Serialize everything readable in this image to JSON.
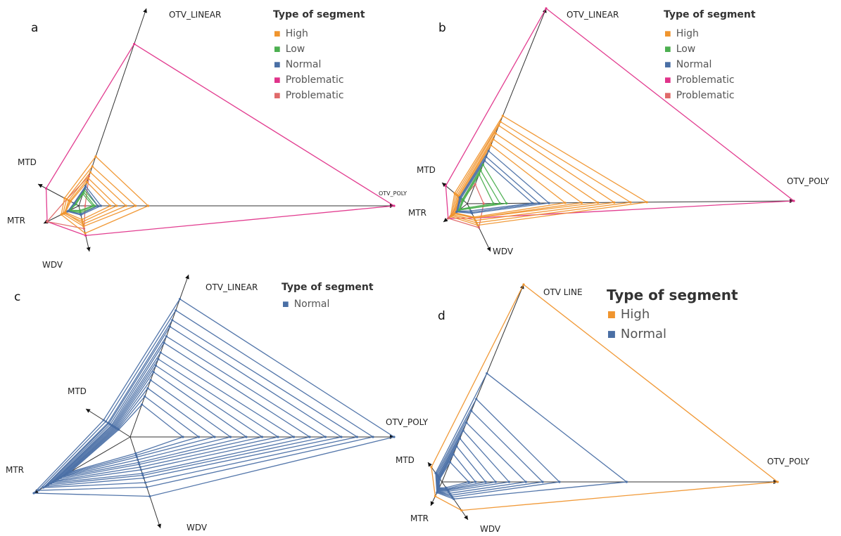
{
  "chart_data": [
    {
      "type": "radar",
      "panel": "a",
      "legend_title": "Type of segment",
      "legend": [
        {
          "name": "High",
          "color": "#F0952E"
        },
        {
          "name": "Low",
          "color": "#4CAF50"
        },
        {
          "name": "Normal",
          "color": "#4A6FA5"
        },
        {
          "name": "Problematic",
          "color": "#E0338A"
        },
        {
          "name": "Problematic",
          "color": "#E06A6A"
        }
      ],
      "axes": [
        {
          "name": "OTV_LINEAR"
        },
        {
          "name": "OTV_POLY"
        },
        {
          "name": "WDV"
        },
        {
          "name": "MTR"
        },
        {
          "name": "MTD"
        }
      ],
      "series": [
        {
          "group": 3,
          "values": [
            0.82,
            1.0,
            0.65,
            0.9,
            0.8
          ]
        },
        {
          "group": 4,
          "values": [
            0.15,
            0.02,
            0.5,
            0.9,
            0.3
          ]
        },
        {
          "group": 0,
          "values": [
            0.25,
            0.22,
            0.6,
            0.5,
            0.35
          ]
        },
        {
          "group": 0,
          "values": [
            0.2,
            0.18,
            0.45,
            0.45,
            0.3
          ]
        },
        {
          "group": 0,
          "values": [
            0.17,
            0.15,
            0.4,
            0.4,
            0.25
          ]
        },
        {
          "group": 0,
          "values": [
            0.14,
            0.12,
            0.35,
            0.42,
            0.22
          ]
        },
        {
          "group": 0,
          "values": [
            0.12,
            0.1,
            0.3,
            0.38,
            0.2
          ]
        },
        {
          "group": 1,
          "values": [
            0.08,
            0.06,
            0.15,
            0.3,
            0.1
          ]
        },
        {
          "group": 1,
          "values": [
            0.07,
            0.05,
            0.12,
            0.28,
            0.08
          ]
        },
        {
          "group": 1,
          "values": [
            0.06,
            0.045,
            0.1,
            0.25,
            0.07
          ]
        },
        {
          "group": 2,
          "values": [
            0.1,
            0.07,
            0.2,
            0.32,
            0.12
          ]
        },
        {
          "group": 2,
          "values": [
            0.09,
            0.06,
            0.18,
            0.3,
            0.11
          ]
        }
      ]
    },
    {
      "type": "radar",
      "panel": "b",
      "legend_title": "Type of segment",
      "legend": [
        {
          "name": "High",
          "color": "#F0952E"
        },
        {
          "name": "Low",
          "color": "#4CAF50"
        },
        {
          "name": "Normal",
          "color": "#4A6FA5"
        },
        {
          "name": "Problematic",
          "color": "#E0338A"
        },
        {
          "name": "Problematic",
          "color": "#E06A6A"
        }
      ],
      "axes": [
        {
          "name": "OTV_LINEAR"
        },
        {
          "name": "OTV_POLY"
        },
        {
          "name": "WDV"
        },
        {
          "name": "MTR"
        },
        {
          "name": "MTD"
        }
      ],
      "series": [
        {
          "group": 3,
          "values": [
            1.0,
            1.0,
            0.3,
            0.8,
            0.85
          ]
        },
        {
          "group": 4,
          "values": [
            0.1,
            0.05,
            0.5,
            0.8,
            0.2
          ]
        },
        {
          "group": 0,
          "values": [
            0.45,
            0.55,
            0.45,
            0.7,
            0.5
          ]
        },
        {
          "group": 0,
          "values": [
            0.42,
            0.5,
            0.4,
            0.65,
            0.45
          ]
        },
        {
          "group": 0,
          "values": [
            0.4,
            0.45,
            0.35,
            0.6,
            0.4
          ]
        },
        {
          "group": 0,
          "values": [
            0.36,
            0.4,
            0.3,
            0.55,
            0.36
          ]
        },
        {
          "group": 0,
          "values": [
            0.33,
            0.35,
            0.3,
            0.5,
            0.33
          ]
        },
        {
          "group": 0,
          "values": [
            0.3,
            0.3,
            0.28,
            0.5,
            0.3
          ]
        },
        {
          "group": 2,
          "values": [
            0.27,
            0.25,
            0.2,
            0.45,
            0.3
          ]
        },
        {
          "group": 2,
          "values": [
            0.24,
            0.22,
            0.18,
            0.42,
            0.28
          ]
        },
        {
          "group": 2,
          "values": [
            0.22,
            0.2,
            0.15,
            0.4,
            0.25
          ]
        },
        {
          "group": 1,
          "values": [
            0.2,
            0.12,
            0.1,
            0.35,
            0.2
          ]
        },
        {
          "group": 1,
          "values": [
            0.17,
            0.1,
            0.1,
            0.33,
            0.18
          ]
        },
        {
          "group": 1,
          "values": [
            0.15,
            0.08,
            0.08,
            0.3,
            0.15
          ]
        }
      ]
    },
    {
      "type": "radar",
      "panel": "c",
      "legend_title": "Type of segment",
      "legend": [
        {
          "name": "Normal",
          "color": "#4A6FA5"
        }
      ],
      "axes": [
        {
          "name": "OTV_LINEAR"
        },
        {
          "name": "OTV_POLY"
        },
        {
          "name": "WDV"
        },
        {
          "name": "MTR"
        },
        {
          "name": "MTD"
        }
      ],
      "series": [
        {
          "group": 0,
          "values": [
            0.85,
            1.0,
            0.65,
            1.0,
            0.6
          ]
        },
        {
          "group": 0,
          "values": [
            0.78,
            0.92,
            0.55,
            0.95,
            0.55
          ]
        },
        {
          "group": 0,
          "values": [
            0.72,
            0.86,
            0.5,
            0.9,
            0.5
          ]
        },
        {
          "group": 0,
          "values": [
            0.68,
            0.8,
            0.45,
            0.88,
            0.48
          ]
        },
        {
          "group": 0,
          "values": [
            0.62,
            0.74,
            0.42,
            0.85,
            0.45
          ]
        },
        {
          "group": 0,
          "values": [
            0.58,
            0.68,
            0.4,
            0.82,
            0.42
          ]
        },
        {
          "group": 0,
          "values": [
            0.52,
            0.62,
            0.36,
            0.8,
            0.4
          ]
        },
        {
          "group": 0,
          "values": [
            0.48,
            0.56,
            0.33,
            0.78,
            0.38
          ]
        },
        {
          "group": 0,
          "values": [
            0.44,
            0.5,
            0.3,
            0.75,
            0.36
          ]
        },
        {
          "group": 0,
          "values": [
            0.4,
            0.44,
            0.28,
            0.72,
            0.34
          ]
        },
        {
          "group": 0,
          "values": [
            0.35,
            0.38,
            0.25,
            0.7,
            0.32
          ]
        },
        {
          "group": 0,
          "values": [
            0.3,
            0.32,
            0.22,
            0.68,
            0.3
          ]
        },
        {
          "group": 0,
          "values": [
            0.25,
            0.26,
            0.2,
            0.65,
            0.28
          ]
        },
        {
          "group": 0,
          "values": [
            0.2,
            0.2,
            0.18,
            0.62,
            0.26
          ]
        }
      ]
    },
    {
      "type": "radar",
      "panel": "d",
      "legend_title": "Type of segment",
      "legend": [
        {
          "name": "High",
          "color": "#F0952E"
        },
        {
          "name": "Normal",
          "color": "#4A6FA5"
        }
      ],
      "axes": [
        {
          "name": "OTV LINE"
        },
        {
          "name": "OTV_POLY"
        },
        {
          "name": "WDV"
        },
        {
          "name": "MTR"
        },
        {
          "name": "MTD"
        }
      ],
      "series": [
        {
          "group": 0,
          "values": [
            1.0,
            1.0,
            0.75,
            0.6,
            0.75
          ]
        },
        {
          "group": 1,
          "values": [
            0.55,
            0.55,
            0.45,
            0.45,
            0.45
          ]
        },
        {
          "group": 1,
          "values": [
            0.42,
            0.35,
            0.4,
            0.42,
            0.4
          ]
        },
        {
          "group": 1,
          "values": [
            0.36,
            0.3,
            0.35,
            0.4,
            0.35
          ]
        },
        {
          "group": 1,
          "values": [
            0.3,
            0.25,
            0.3,
            0.38,
            0.3
          ]
        },
        {
          "group": 1,
          "values": [
            0.26,
            0.2,
            0.25,
            0.36,
            0.26
          ]
        },
        {
          "group": 1,
          "values": [
            0.22,
            0.16,
            0.22,
            0.34,
            0.22
          ]
        },
        {
          "group": 1,
          "values": [
            0.18,
            0.13,
            0.2,
            0.3,
            0.2
          ]
        },
        {
          "group": 1,
          "values": [
            0.14,
            0.1,
            0.18,
            0.28,
            0.18
          ]
        },
        {
          "group": 1,
          "values": [
            0.1,
            0.08,
            0.15,
            0.25,
            0.15
          ]
        }
      ]
    }
  ]
}
